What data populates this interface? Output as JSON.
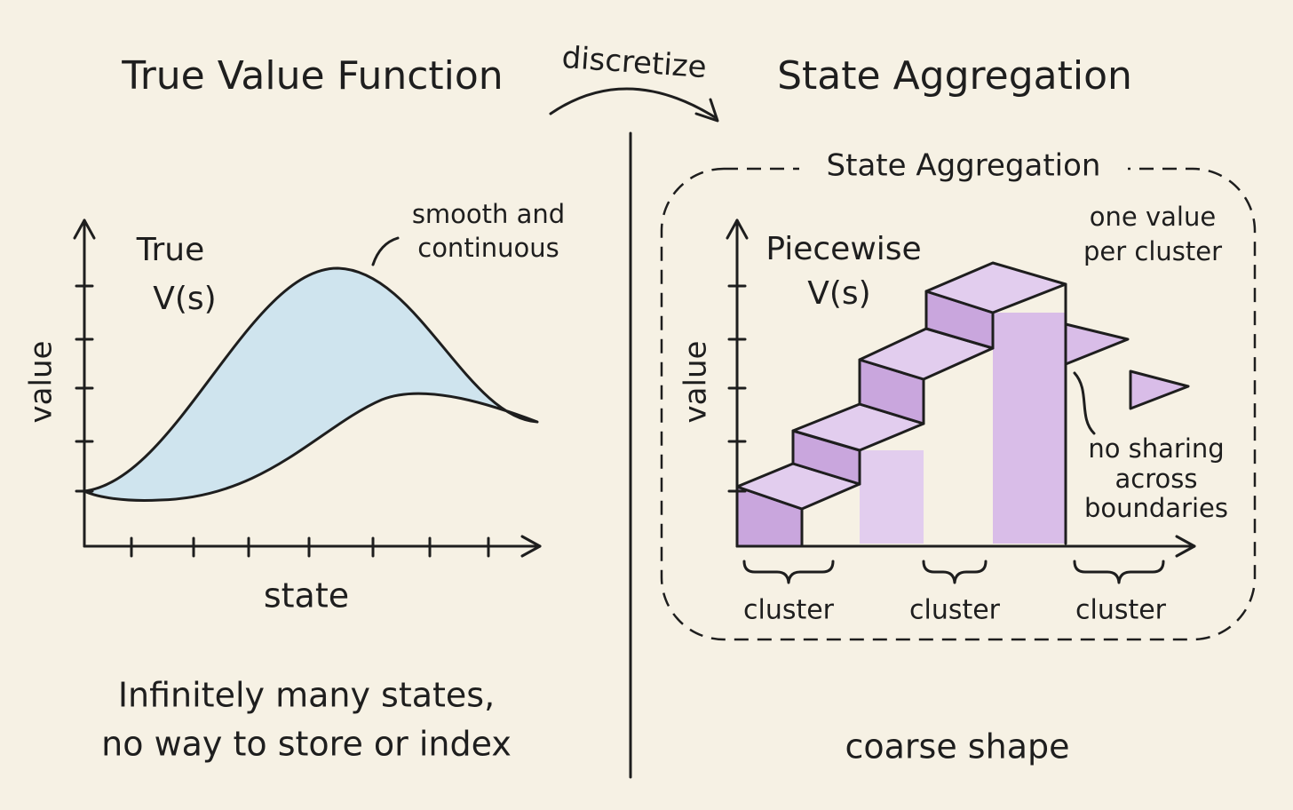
{
  "arrow_label": "discretize",
  "left": {
    "title": "True Value Function",
    "curve_label": [
      "True",
      "V(s)"
    ],
    "annotation": [
      "smooth and",
      "continuous"
    ],
    "y_axis": "value",
    "x_axis": "state",
    "caption": [
      "Infinitely many states,",
      "no way to store or index"
    ]
  },
  "right": {
    "title": "State Aggregation",
    "box_label": "State Aggregation",
    "curve_label": [
      "Piecewise",
      "V(s)"
    ],
    "annotation": [
      "one value",
      "per cluster"
    ],
    "note": [
      "no sharing",
      "across",
      "boundaries"
    ],
    "y_axis": "value",
    "clusters": [
      "cluster",
      "cluster",
      "cluster"
    ],
    "caption": "coarse shape"
  }
}
